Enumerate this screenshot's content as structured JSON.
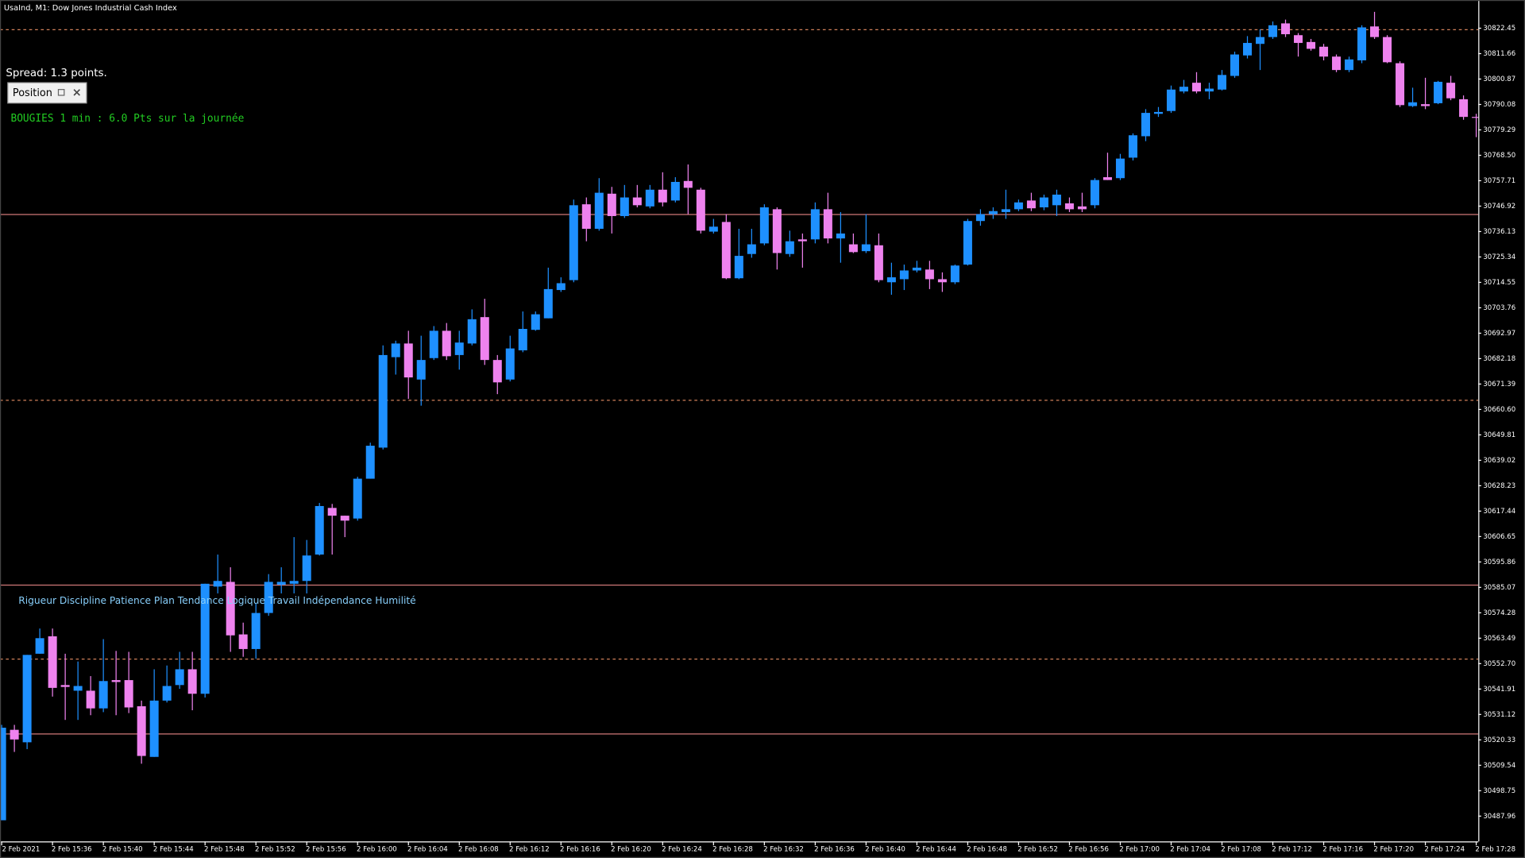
{
  "chart_data": {
    "type": "candlestick",
    "title": "UsaInd, M1: Dow Jones Industrial Cash Index",
    "annotations": [
      "Spread: 1.3 points.",
      "BOUGIES 1 min : 6.0 Pts sur la journée",
      "Rigueur Discipline Patience Plan Tendance Logique Travail Indépendance Humilité"
    ],
    "controls": [
      "Position"
    ],
    "up_color": "#1e90ff",
    "down_color": "#ee82ee",
    "categories": [
      "2 Feb 2021",
      null,
      null,
      null,
      "2 Feb 15:36",
      null,
      null,
      null,
      "2 Feb 15:40",
      null,
      null,
      null,
      "2 Feb 15:44",
      null,
      null,
      null,
      "2 Feb 15:48",
      null,
      null,
      null,
      "2 Feb 15:52",
      null,
      null,
      null,
      "2 Feb 15:56",
      null,
      null,
      null,
      "2 Feb 16:00",
      null,
      null,
      null,
      "2 Feb 16:04",
      null,
      null,
      null,
      "2 Feb 16:08",
      null,
      null,
      null,
      "2 Feb 16:12",
      null,
      null,
      null,
      "2 Feb 16:16",
      null,
      null,
      null,
      "2 Feb 16:20",
      null,
      null,
      null,
      "2 Feb 16:24",
      null,
      null,
      null,
      "2 Feb 16:28",
      null,
      null,
      null,
      "2 Feb 16:32",
      null,
      null,
      null,
      "2 Feb 16:36",
      null,
      null,
      null,
      "2 Feb 16:40",
      null,
      null,
      null,
      "2 Feb 16:44",
      null,
      null,
      null,
      "2 Feb 16:48",
      null,
      null,
      null,
      "2 Feb 16:52",
      null,
      null,
      null,
      "2 Feb 16:56",
      null,
      null,
      null,
      "2 Feb 17:00",
      null,
      null,
      null,
      "2 Feb 17:04",
      null,
      null,
      null,
      "2 Feb 17:08",
      null,
      null,
      null,
      "2 Feb 17:12",
      null,
      null,
      null,
      "2 Feb 17:16",
      null,
      null,
      null,
      "2 Feb 17:20",
      null,
      null,
      null,
      "2 Feb 17:24",
      null,
      null,
      null,
      "2 Feb 17:28"
    ],
    "open": [
      30486.2,
      30524.6,
      30519.3,
      30556.9,
      30564.3,
      30543.6,
      30541.2,
      30541.2,
      30533.7,
      30545.7,
      30545.7,
      30534.6,
      30513.1,
      30537.0,
      30543.6,
      30550.3,
      30539.9,
      30585.4,
      30587.4,
      30565.1,
      30558.9,
      30574.2,
      30586.2,
      30586.6,
      30587.8,
      30599.0,
      30618.8,
      30615.5,
      30614.3,
      30631.2,
      30644.4,
      30682.8,
      30688.6,
      30673.3,
      30682.4,
      30694.0,
      30683.7,
      30688.6,
      30699.8,
      30681.6,
      30673.3,
      30685.7,
      30694.4,
      30699.3,
      30711.3,
      30715.5,
      30747.7,
      30737.3,
      30752.2,
      30742.7,
      30750.6,
      30746.8,
      30753.9,
      30749.3,
      30757.6,
      30753.9,
      30736.1,
      30740.2,
      30716.3,
      30726.6,
      30731.1,
      30745.6,
      30726.6,
      30732.8,
      30732.8,
      30745.6,
      30733.2,
      30730.7,
      30727.8,
      30730.3,
      30714.6,
      30715.9,
      30719.6,
      30720.0,
      30715.9,
      30714.6,
      30722.1,
      30740.6,
      30743.5,
      30744.4,
      30745.6,
      30749.3,
      30746.4,
      30747.3,
      30748.1,
      30746.8,
      30747.3,
      30759.2,
      30758.8,
      30767.5,
      30776.6,
      30786.1,
      30787.3,
      30795.6,
      30799.3,
      30795.6,
      30796.4,
      30802.2,
      30810.9,
      30815.8,
      30818.7,
      30824.5,
      30819.5,
      30816.6,
      30814.6,
      30810.4,
      30804.7,
      30808.8,
      30823.2,
      30818.7,
      30807.6,
      30789.4,
      30790.2,
      30790.6,
      30799.3,
      30792.3,
      30784.8
    ],
    "high": [
      30526.7,
      30526.7,
      30556.4,
      30567.6,
      30567.6,
      30556.9,
      30553.6,
      30547.4,
      30563.1,
      30558.1,
      30557.7,
      30537.0,
      30550.3,
      30551.9,
      30557.7,
      30557.7,
      30586.6,
      30599.0,
      30593.6,
      30570.1,
      30578.3,
      30590.7,
      30593.6,
      30606.4,
      30605.2,
      30620.9,
      30620.5,
      30615.5,
      30632.0,
      30646.5,
      30687.8,
      30689.8,
      30694.0,
      30691.9,
      30696.0,
      30697.3,
      30694.0,
      30703.1,
      30707.6,
      30683.7,
      30691.9,
      30702.2,
      30702.2,
      30720.8,
      30716.7,
      30749.7,
      30750.6,
      30758.8,
      30755.1,
      30755.9,
      30755.9,
      30755.9,
      30761.3,
      30759.2,
      30764.6,
      30754.7,
      30741.5,
      30743.5,
      30737.3,
      30737.3,
      30747.7,
      30746.4,
      30736.5,
      30735.3,
      30748.5,
      30752.6,
      30744.4,
      30735.3,
      30743.5,
      30735.3,
      30722.9,
      30722.1,
      30723.7,
      30723.7,
      30718.8,
      30722.1,
      30741.5,
      30745.6,
      30746.4,
      30753.9,
      30749.7,
      30752.6,
      30751.8,
      30753.9,
      30750.6,
      30752.6,
      30758.8,
      30769.6,
      30769.1,
      30777.8,
      30788.1,
      30789.0,
      30798.1,
      30800.5,
      30803.8,
      30799.3,
      30804.7,
      30812.5,
      30819.1,
      30822.0,
      30825.3,
      30826.1,
      30820.4,
      30817.9,
      30815.8,
      30811.3,
      30810.4,
      30823.7,
      30829.4,
      30819.5,
      30808.4,
      30797.2,
      30801.4,
      30800.1,
      30802.2,
      30793.9,
      30786.1
    ],
    "low": [
      30486.2,
      30515.2,
      30516.4,
      30556.9,
      30538.7,
      30528.8,
      30528.8,
      30530.8,
      30532.1,
      30530.8,
      30531.7,
      30510.2,
      30513.1,
      30536.2,
      30542.0,
      30532.9,
      30538.3,
      30582.5,
      30557.7,
      30555.6,
      30554.8,
      30573.0,
      30582.5,
      30582.5,
      30582.5,
      30598.6,
      30599.0,
      30606.4,
      30613.4,
      30631.2,
      30643.6,
      30675.4,
      30665.1,
      30662.2,
      30681.6,
      30681.6,
      30677.5,
      30687.8,
      30679.5,
      30667.1,
      30672.5,
      30684.9,
      30694.0,
      30699.3,
      30710.5,
      30714.6,
      30732.0,
      30736.5,
      30735.3,
      30741.9,
      30746.4,
      30746.0,
      30746.8,
      30748.5,
      30743.5,
      30735.3,
      30735.3,
      30715.9,
      30715.9,
      30725.0,
      30730.3,
      30720.0,
      30725.4,
      30720.8,
      30731.1,
      30731.1,
      30722.9,
      30727.0,
      30727.0,
      30714.6,
      30709.3,
      30711.3,
      30718.8,
      30711.7,
      30710.5,
      30713.8,
      30721.7,
      30738.6,
      30741.5,
      30741.5,
      30744.8,
      30744.8,
      30745.2,
      30742.7,
      30744.4,
      30744.4,
      30746.0,
      30758.0,
      30758.0,
      30766.3,
      30774.5,
      30784.8,
      30786.5,
      30794.8,
      30794.8,
      30792.3,
      30796.0,
      30801.4,
      30809.6,
      30804.7,
      30817.9,
      30818.7,
      30810.4,
      30812.9,
      30808.8,
      30803.8,
      30803.8,
      30807.6,
      30817.9,
      30807.6,
      30789.0,
      30789.0,
      30788.1,
      30790.2,
      30791.9,
      30783.6,
      30776.2
    ],
    "close": [
      30525.5,
      30520.5,
      30556.4,
      30563.5,
      30542.4,
      30542.8,
      30543.2,
      30533.7,
      30545.3,
      30544.9,
      30534.1,
      30513.5,
      30537.0,
      30543.2,
      30550.3,
      30539.9,
      30586.6,
      30587.8,
      30564.7,
      30558.9,
      30574.2,
      30587.4,
      30587.4,
      30587.8,
      30598.6,
      30619.6,
      30615.5,
      30613.4,
      30631.2,
      30645.2,
      30683.7,
      30688.6,
      30674.2,
      30681.6,
      30694.0,
      30683.2,
      30689.0,
      30698.9,
      30681.6,
      30672.1,
      30686.5,
      30694.8,
      30701.0,
      30711.7,
      30714.2,
      30747.3,
      30737.3,
      30752.6,
      30742.7,
      30750.6,
      30747.3,
      30753.9,
      30748.5,
      30757.2,
      30754.7,
      30736.5,
      30738.2,
      30716.3,
      30725.8,
      30730.7,
      30746.4,
      30727.0,
      30732.0,
      30732.0,
      30745.6,
      30733.2,
      30735.3,
      30727.4,
      30730.7,
      30715.5,
      30716.7,
      30719.6,
      30720.8,
      30715.9,
      30714.6,
      30721.7,
      30740.6,
      30743.5,
      30744.8,
      30745.6,
      30748.5,
      30746.0,
      30750.6,
      30751.8,
      30745.6,
      30745.6,
      30758.0,
      30758.0,
      30767.1,
      30777.0,
      30786.5,
      30786.9,
      30796.4,
      30797.6,
      30795.6,
      30796.8,
      30802.6,
      30811.3,
      30816.2,
      30818.7,
      30823.7,
      30819.9,
      30816.2,
      30813.7,
      30810.4,
      30804.7,
      30809.2,
      30822.8,
      30818.7,
      30808.0,
      30789.8,
      30791.0,
      30789.4,
      30799.7,
      30792.7,
      30784.8,
      30784.4
    ],
    "levels": [
      {
        "value": 30822.0,
        "style": "dashed",
        "color": "#d0805a"
      },
      {
        "value": 30743.5,
        "style": "solid",
        "color": "#d07878"
      },
      {
        "value": 30664.7,
        "style": "dashed",
        "color": "#d0805a"
      },
      {
        "value": 30586.2,
        "style": "solid",
        "color": "#d07878"
      },
      {
        "value": 30554.8,
        "style": "dashed",
        "color": "#d0805a"
      },
      {
        "value": 30523.0,
        "style": "solid",
        "color": "#d07878"
      }
    ],
    "ylim": [
      30477.2,
      30833.6
    ],
    "yticks": [
      30822.45,
      30811.66,
      30800.87,
      30790.08,
      30779.29,
      {
        "value": 30768.5,
        "label": "30768.50"
      },
      30757.71,
      30746.92,
      30736.13,
      30725.34,
      30714.55,
      30703.76,
      30692.97,
      30682.18,
      30671.39,
      {
        "value": 30660.6,
        "label": "30660.60"
      },
      30649.81,
      30639.02,
      30628.23,
      30617.44,
      30606.65,
      30595.86,
      30585.07,
      30574.28,
      30563.49,
      {
        "value": 30552.7,
        "label": "30552.70"
      },
      30541.91,
      30531.12,
      30520.33,
      30509.54,
      30498.75,
      30487.96
    ]
  }
}
